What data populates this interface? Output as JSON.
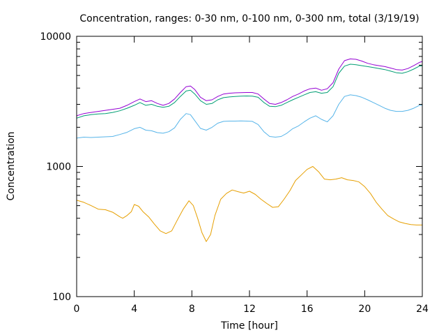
{
  "chart_data": {
    "type": "line",
    "title": "Concentration, ranges: 0-30 nm, 0-100 nm, 0-300 nm, total (3/19/19)",
    "xlabel": "Time [hour]",
    "ylabel": "Concentration",
    "xlim": [
      0,
      24
    ],
    "ylim": [
      100,
      10000
    ],
    "yscale": "log",
    "grid": false,
    "legend": "none",
    "xticks": [
      0,
      4,
      8,
      12,
      16,
      20,
      24
    ],
    "xtick_labels": [
      "0",
      "4",
      "8",
      "12",
      "16",
      "20",
      "24"
    ],
    "yticks": [
      100,
      1000,
      10000
    ],
    "ytick_labels": [
      "100",
      "1000",
      "10000"
    ],
    "series": [
      {
        "color": "#e69f00",
        "x": [
          0,
          0.5,
          1,
          1.5,
          2,
          2.5,
          3,
          3.2,
          3.5,
          3.8,
          4,
          4.3,
          4.6,
          5,
          5.4,
          5.8,
          6.2,
          6.6,
          7,
          7.4,
          7.8,
          8.1,
          8.4,
          8.7,
          9,
          9.3,
          9.6,
          10,
          10.4,
          10.8,
          11.2,
          11.6,
          12,
          12.4,
          12.8,
          13.2,
          13.6,
          14,
          14.4,
          14.8,
          15.2,
          15.6,
          16,
          16.4,
          16.8,
          17.2,
          17.6,
          18,
          18.4,
          18.8,
          19.2,
          19.6,
          20,
          20.4,
          20.8,
          21.2,
          21.6,
          22,
          22.4,
          22.8,
          23.2,
          23.6,
          24
        ],
        "y": [
          550,
          530,
          500,
          470,
          465,
          445,
          410,
          400,
          420,
          450,
          510,
          495,
          450,
          410,
          360,
          320,
          305,
          320,
          390,
          470,
          545,
          500,
          400,
          310,
          265,
          300,
          420,
          560,
          620,
          660,
          640,
          625,
          645,
          610,
          560,
          520,
          485,
          490,
          560,
          650,
          780,
          860,
          950,
          1000,
          910,
          800,
          790,
          800,
          820,
          790,
          780,
          760,
          700,
          620,
          530,
          470,
          420,
          395,
          375,
          365,
          358,
          355,
          355
        ]
      },
      {
        "color": "#56b4e9",
        "x": [
          0,
          0.5,
          1,
          1.5,
          2,
          2.5,
          3,
          3.5,
          4,
          4.4,
          4.8,
          5.2,
          5.6,
          6,
          6.4,
          6.8,
          7.2,
          7.6,
          7.9,
          8.2,
          8.6,
          9,
          9.4,
          9.8,
          10.2,
          10.6,
          11,
          11.4,
          11.8,
          12.2,
          12.6,
          13,
          13.4,
          13.8,
          14.2,
          14.6,
          15,
          15.4,
          15.8,
          16.2,
          16.6,
          17,
          17.4,
          17.8,
          18.2,
          18.6,
          19,
          19.4,
          19.8,
          20.2,
          20.6,
          21,
          21.4,
          21.8,
          22.2,
          22.6,
          23,
          23.4,
          23.8,
          24
        ],
        "y": [
          1650,
          1680,
          1670,
          1680,
          1690,
          1700,
          1760,
          1830,
          1950,
          2000,
          1900,
          1880,
          1820,
          1800,
          1850,
          1980,
          2300,
          2550,
          2500,
          2250,
          1960,
          1900,
          2000,
          2150,
          2220,
          2230,
          2230,
          2240,
          2230,
          2220,
          2100,
          1850,
          1700,
          1680,
          1700,
          1800,
          1950,
          2050,
          2200,
          2350,
          2450,
          2300,
          2200,
          2450,
          3000,
          3450,
          3550,
          3500,
          3400,
          3250,
          3100,
          2950,
          2800,
          2700,
          2650,
          2650,
          2700,
          2800,
          2950,
          2950
        ]
      },
      {
        "color": "#009e73",
        "x": [
          0,
          0.5,
          1,
          1.5,
          2,
          2.5,
          3,
          3.5,
          4,
          4.4,
          4.8,
          5.2,
          5.6,
          6,
          6.4,
          6.8,
          7.2,
          7.6,
          7.9,
          8.2,
          8.6,
          9,
          9.4,
          9.8,
          10.2,
          10.6,
          11,
          11.4,
          11.8,
          12.2,
          12.6,
          13,
          13.4,
          13.8,
          14.2,
          14.6,
          15,
          15.4,
          15.8,
          16.2,
          16.6,
          17,
          17.4,
          17.8,
          18.2,
          18.6,
          19,
          19.4,
          19.8,
          20.2,
          20.6,
          21,
          21.4,
          21.8,
          22.2,
          22.6,
          23,
          23.4,
          23.8,
          24
        ],
        "y": [
          2350,
          2450,
          2500,
          2530,
          2550,
          2600,
          2680,
          2800,
          2950,
          3100,
          2950,
          3000,
          2900,
          2850,
          2900,
          3100,
          3450,
          3800,
          3850,
          3600,
          3200,
          3000,
          3050,
          3250,
          3380,
          3420,
          3450,
          3470,
          3480,
          3470,
          3400,
          3100,
          2900,
          2880,
          2950,
          3100,
          3250,
          3400,
          3550,
          3700,
          3750,
          3650,
          3700,
          4100,
          5200,
          5900,
          6100,
          6050,
          5950,
          5850,
          5750,
          5650,
          5550,
          5400,
          5250,
          5200,
          5350,
          5600,
          5900,
          5950
        ]
      },
      {
        "color": "#9400d3",
        "x": [
          0,
          0.5,
          1,
          1.5,
          2,
          2.5,
          3,
          3.5,
          4,
          4.4,
          4.8,
          5.2,
          5.6,
          6,
          6.4,
          6.8,
          7.2,
          7.6,
          7.9,
          8.2,
          8.6,
          9,
          9.4,
          9.8,
          10.2,
          10.6,
          11,
          11.4,
          11.8,
          12.2,
          12.6,
          13,
          13.4,
          13.8,
          14.2,
          14.6,
          15,
          15.4,
          15.8,
          16.2,
          16.6,
          17,
          17.4,
          17.8,
          18.2,
          18.6,
          19,
          19.4,
          19.8,
          20.2,
          20.6,
          21,
          21.4,
          21.8,
          22.2,
          22.6,
          23,
          23.4,
          23.8,
          24
        ],
        "y": [
          2450,
          2550,
          2600,
          2650,
          2700,
          2750,
          2800,
          2950,
          3150,
          3300,
          3150,
          3200,
          3050,
          2950,
          3050,
          3300,
          3700,
          4100,
          4150,
          3900,
          3400,
          3200,
          3250,
          3450,
          3600,
          3650,
          3680,
          3690,
          3700,
          3700,
          3600,
          3300,
          3050,
          3000,
          3100,
          3250,
          3450,
          3600,
          3800,
          3950,
          4000,
          3850,
          3950,
          4400,
          5600,
          6500,
          6700,
          6650,
          6450,
          6200,
          6050,
          5950,
          5850,
          5700,
          5550,
          5500,
          5650,
          5950,
          6300,
          6400
        ]
      }
    ]
  }
}
